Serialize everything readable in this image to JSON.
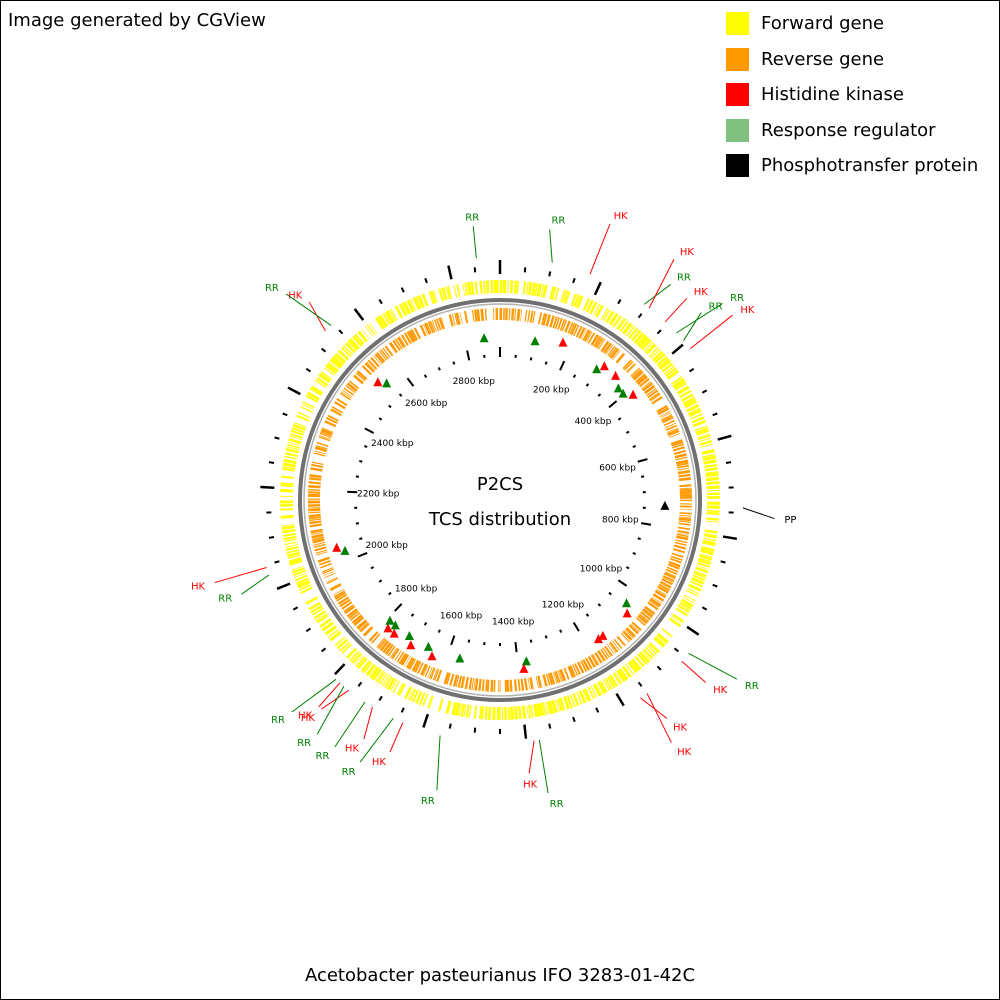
{
  "header": {
    "generated_by": "Image generated by CGView"
  },
  "legend": [
    {
      "label": "Forward gene",
      "color": "#ffff00"
    },
    {
      "label": "Reverse gene",
      "color": "#ff9900"
    },
    {
      "label": "Histidine kinase",
      "color": "#ff0000"
    },
    {
      "label": "Response regulator",
      "color": "#80c080"
    },
    {
      "label": "Phosphotransfer protein",
      "color": "#000000"
    }
  ],
  "map": {
    "title": "P2CS",
    "subtitle": "TCS distribution",
    "caption": "Acetobacter pasteurianus IFO 3283-01-42C",
    "genome_length_kbp": 2900,
    "tick_labels": [
      "200 kbp",
      "400 kbp",
      "600 kbp",
      "800 kbp",
      "1000 kbp",
      "1200 kbp",
      "1400 kbp",
      "1600 kbp",
      "1800 kbp",
      "2000 kbp",
      "2200 kbp",
      "2400 kbp",
      "2600 kbp",
      "2800 kbp"
    ],
    "features": [
      {
        "type": "RR",
        "kbp": 100,
        "label": "RR"
      },
      {
        "type": "HK",
        "kbp": 175,
        "label": "HK"
      },
      {
        "type": "RR",
        "kbp": 293,
        "label": "RR"
      },
      {
        "type": "HK",
        "kbp": 305,
        "label": "HK"
      },
      {
        "type": "HK",
        "kbp": 345,
        "label": "HK"
      },
      {
        "type": "RR",
        "kbp": 375,
        "label": "RR"
      },
      {
        "type": "RR",
        "kbp": 395,
        "label": "RR"
      },
      {
        "type": "HK",
        "kbp": 415,
        "label": "HK"
      },
      {
        "type": "PP",
        "kbp": 740,
        "label": "PP"
      },
      {
        "type": "RR",
        "kbp": 1040,
        "label": "RR"
      },
      {
        "type": "HK",
        "kbp": 1060,
        "label": "HK"
      },
      {
        "type": "HK",
        "kbp": 1150,
        "label": "HK"
      },
      {
        "type": "HK",
        "kbp": 1165,
        "label": "HK"
      },
      {
        "type": "RR",
        "kbp": 1375,
        "label": "RR"
      },
      {
        "type": "HK",
        "kbp": 1385,
        "label": "HK"
      },
      {
        "type": "RR",
        "kbp": 1565,
        "label": "RR"
      },
      {
        "type": "HK",
        "kbp": 1640,
        "label": "HK"
      },
      {
        "type": "RR",
        "kbp": 1660,
        "label": "RR"
      },
      {
        "type": "HK",
        "kbp": 1705,
        "label": "HK"
      },
      {
        "type": "RR",
        "kbp": 1722,
        "label": "RR"
      },
      {
        "type": "HK",
        "kbp": 1760,
        "label": "HK"
      },
      {
        "type": "RR",
        "kbp": 1772,
        "label": "RR"
      },
      {
        "type": "HK",
        "kbp": 1782,
        "label": "HK"
      },
      {
        "type": "RR",
        "kbp": 1792,
        "label": "RR"
      },
      {
        "type": "RR",
        "kbp": 2030,
        "label": "RR"
      },
      {
        "type": "HK",
        "kbp": 2045,
        "label": "HK"
      },
      {
        "type": "HK",
        "kbp": 2530,
        "label": "HK"
      },
      {
        "type": "RR",
        "kbp": 2545,
        "label": "RR"
      },
      {
        "type": "RR",
        "kbp": 2855,
        "label": "RR"
      }
    ],
    "feature_colors": {
      "HK": "#ff0000",
      "RR": "#008000",
      "PP": "#000000"
    },
    "callout_colors": {
      "HK": "#ff0000",
      "RR": "#008000",
      "PP": "#000000"
    }
  }
}
